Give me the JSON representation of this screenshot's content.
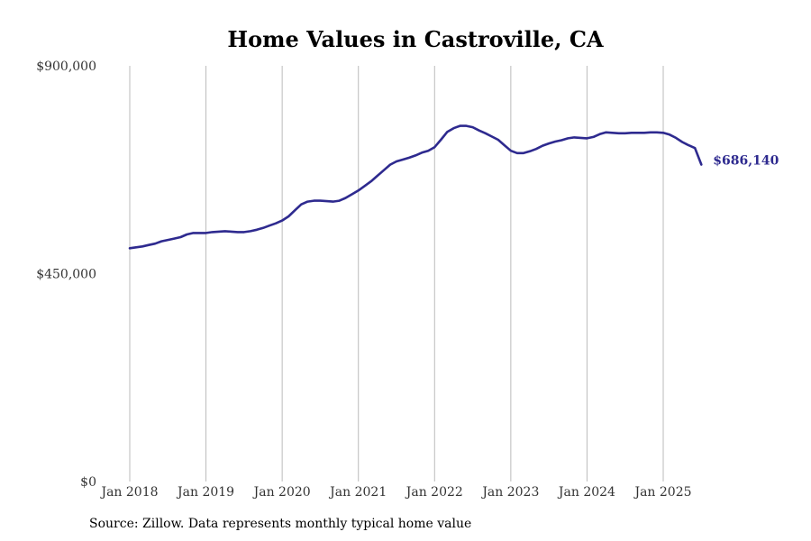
{
  "chart_data": {
    "type": "line",
    "title": "Home Values in Castroville, CA",
    "xlabel": "",
    "ylabel": "",
    "ylim": [
      0,
      900000
    ],
    "y_ticks": [
      {
        "value": 0,
        "label": "$0"
      },
      {
        "value": 450000,
        "label": "$450,000"
      },
      {
        "value": 900000,
        "label": "$900,000"
      }
    ],
    "x_ticks": [
      {
        "value": "2018-01",
        "label": "Jan 2018"
      },
      {
        "value": "2019-01",
        "label": "Jan 2019"
      },
      {
        "value": "2020-01",
        "label": "Jan 2020"
      },
      {
        "value": "2021-01",
        "label": "Jan 2021"
      },
      {
        "value": "2022-01",
        "label": "Jan 2022"
      },
      {
        "value": "2023-01",
        "label": "Jan 2023"
      },
      {
        "value": "2024-01",
        "label": "Jan 2024"
      },
      {
        "value": "2025-01",
        "label": "Jan 2025"
      }
    ],
    "grid": "vertical",
    "line_color": "#2e2a8f",
    "gridline_color": "#bbbbbb",
    "end_label": "$686,140",
    "series": [
      {
        "x": [
          "2018-01",
          "2018-02",
          "2018-03",
          "2018-04",
          "2018-05",
          "2018-06",
          "2018-07",
          "2018-08",
          "2018-09",
          "2018-10",
          "2018-11",
          "2018-12",
          "2019-01",
          "2019-02",
          "2019-03",
          "2019-04",
          "2019-05",
          "2019-06",
          "2019-07",
          "2019-08",
          "2019-09",
          "2019-10",
          "2019-11",
          "2019-12",
          "2020-01",
          "2020-02",
          "2020-03",
          "2020-04",
          "2020-05",
          "2020-06",
          "2020-07",
          "2020-08",
          "2020-09",
          "2020-10",
          "2020-11",
          "2020-12",
          "2021-01",
          "2021-02",
          "2021-03",
          "2021-04",
          "2021-05",
          "2021-06",
          "2021-07",
          "2021-08",
          "2021-09",
          "2021-10",
          "2021-11",
          "2021-12",
          "2022-01",
          "2022-02",
          "2022-03",
          "2022-04",
          "2022-05",
          "2022-06",
          "2022-07",
          "2022-08",
          "2022-09",
          "2022-10",
          "2022-11",
          "2022-12",
          "2023-01",
          "2023-02",
          "2023-03",
          "2023-04",
          "2023-05",
          "2023-06",
          "2023-07",
          "2023-08",
          "2023-09",
          "2023-10",
          "2023-11",
          "2023-12",
          "2024-01",
          "2024-02",
          "2024-03",
          "2024-04",
          "2024-05",
          "2024-06",
          "2024-07",
          "2024-08",
          "2024-09",
          "2024-10",
          "2024-11",
          "2024-12",
          "2025-01",
          "2025-02",
          "2025-03",
          "2025-04",
          "2025-05",
          "2025-06",
          "2025-07"
        ],
        "values": [
          505000,
          507000,
          509000,
          512000,
          515000,
          520000,
          523000,
          526000,
          529000,
          535000,
          538000,
          538000,
          538000,
          540000,
          541000,
          542000,
          541000,
          540000,
          540000,
          542000,
          545000,
          549000,
          554000,
          559000,
          565000,
          574000,
          587000,
          600000,
          606000,
          608000,
          608000,
          607000,
          606000,
          608000,
          614000,
          622000,
          630000,
          640000,
          650000,
          662000,
          674000,
          686000,
          693000,
          697000,
          701000,
          706000,
          712000,
          716000,
          724000,
          740000,
          757000,
          765000,
          770000,
          770000,
          767000,
          760000,
          754000,
          747000,
          740000,
          728000,
          716000,
          711000,
          711000,
          715000,
          720000,
          727000,
          732000,
          736000,
          739000,
          743000,
          745000,
          744000,
          743000,
          746000,
          752000,
          756000,
          755000,
          754000,
          754000,
          755000,
          755000,
          755000,
          756000,
          756000,
          755000,
          751000,
          744000,
          735000,
          728000,
          722000,
          686140
        ]
      }
    ]
  },
  "source_note": "Source: Zillow. Data represents monthly typical home value"
}
